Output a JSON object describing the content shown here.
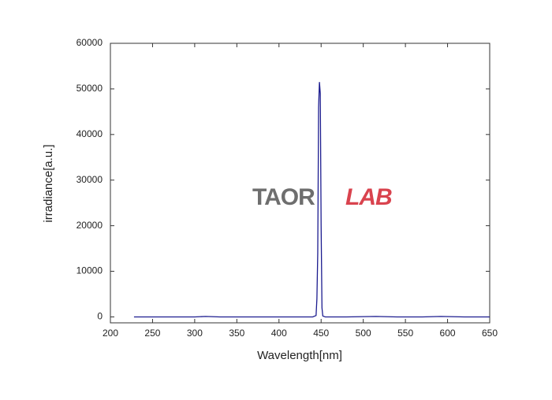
{
  "chart_data": {
    "type": "line",
    "x_label": "Wavelength[nm]",
    "y_label": "irradiance[a.u.]",
    "watermark": [
      "TAOR",
      "LAB"
    ],
    "x": [
      228,
      240,
      260,
      280,
      300,
      313,
      330,
      360,
      390,
      420,
      440,
      444,
      445,
      446,
      447,
      448,
      449,
      450,
      451,
      452,
      455,
      480,
      515,
      540,
      570,
      592,
      620,
      650
    ],
    "series": [
      {
        "name": "irradiance",
        "color": "#1c1c8f",
        "values": [
          0,
          0,
          0,
          0,
          0,
          100,
          0,
          0,
          0,
          0,
          0,
          300,
          4000,
          14000,
          46000,
          51500,
          49000,
          20000,
          2000,
          200,
          0,
          0,
          100,
          0,
          0,
          100,
          0,
          0
        ]
      }
    ],
    "xlim": [
      200,
      650
    ],
    "ylim": [
      -1300,
      60000
    ],
    "xticks": [
      200,
      250,
      300,
      350,
      400,
      450,
      500,
      550,
      600,
      650
    ],
    "yticks": [
      0,
      10000,
      20000,
      30000,
      40000,
      50000,
      60000
    ]
  }
}
